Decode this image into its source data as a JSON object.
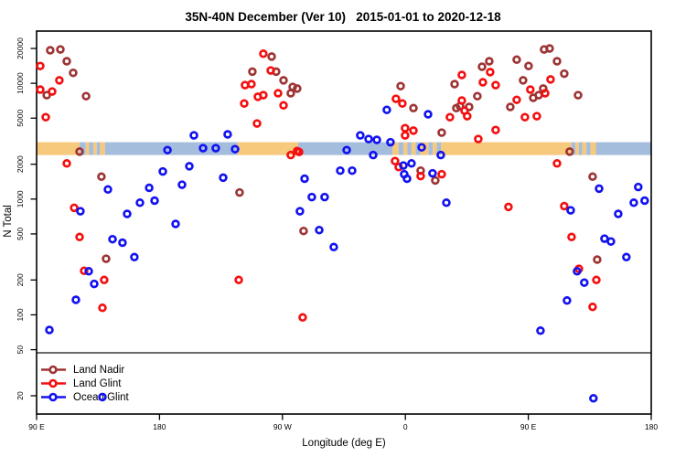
{
  "title": "35N-40N December (Ver 10)   2015-01-01 to 2020-12-18",
  "chart_data": {
    "type": "scatter",
    "title": "35N-40N December (Ver 10)   2015-01-01 to 2020-12-18",
    "xlabel": "Longitude (deg E)",
    "ylabel": "N Total",
    "x_axis": {
      "range_deg_east": [
        90,
        540
      ],
      "tick_values": [
        90,
        180,
        270,
        360,
        450,
        540
      ],
      "tick_labels": [
        "90 E",
        "180",
        "90 W",
        "0",
        "90 E",
        "180"
      ],
      "grid": false
    },
    "y_axis": {
      "scale": "log",
      "range": [
        20,
        20000
      ],
      "tick_values": [
        20,
        50,
        100,
        200,
        500,
        1000,
        2000,
        5000,
        10000,
        20000
      ],
      "tick_labels": [
        "20",
        "50",
        "100",
        "200",
        "500",
        "1000",
        "2000",
        "5000",
        "10000",
        "20000"
      ],
      "grid": false
    },
    "map_band": {
      "description": "35N-40N latitude strip map: land vs ocean along longitude",
      "land_color": "#f7c97d",
      "ocean_color": "#a5bddd",
      "n_range": [
        2400,
        3100
      ],
      "segments": [
        {
          "type": "land",
          "from": 90,
          "to": 121.5
        },
        {
          "type": "ocean",
          "from": 121.5,
          "to": 126
        },
        {
          "type": "land",
          "from": 126,
          "to": 128.5
        },
        {
          "type": "ocean",
          "from": 128.5,
          "to": 131.5
        },
        {
          "type": "land",
          "from": 131.5,
          "to": 134
        },
        {
          "type": "ocean",
          "from": 134,
          "to": 136.5
        },
        {
          "type": "land",
          "from": 136.5,
          "to": 140
        },
        {
          "type": "ocean",
          "from": 140,
          "to": 237
        },
        {
          "type": "land",
          "from": 237,
          "to": 281.5
        },
        {
          "type": "ocean",
          "from": 281.5,
          "to": 350.5
        },
        {
          "type": "land",
          "from": 350.5,
          "to": 355
        },
        {
          "type": "ocean",
          "from": 355,
          "to": 358.5
        },
        {
          "type": "land",
          "from": 358.5,
          "to": 361.5
        },
        {
          "type": "ocean",
          "from": 361.5,
          "to": 364.5
        },
        {
          "type": "land",
          "from": 364.5,
          "to": 367.5
        },
        {
          "type": "ocean",
          "from": 367.5,
          "to": 371
        },
        {
          "type": "land",
          "from": 371,
          "to": 377
        },
        {
          "type": "ocean",
          "from": 377,
          "to": 380
        },
        {
          "type": "land",
          "from": 380,
          "to": 383
        },
        {
          "type": "ocean",
          "from": 383,
          "to": 386
        },
        {
          "type": "land",
          "from": 386,
          "to": 481.5
        },
        {
          "type": "ocean",
          "from": 481.5,
          "to": 484.5
        },
        {
          "type": "land",
          "from": 484.5,
          "to": 487
        },
        {
          "type": "ocean",
          "from": 487,
          "to": 489.5
        },
        {
          "type": "land",
          "from": 489.5,
          "to": 492.5
        },
        {
          "type": "ocean",
          "from": 492.5,
          "to": 495.5
        },
        {
          "type": "land",
          "from": 495.5,
          "to": 499.5
        },
        {
          "type": "ocean",
          "from": 499.5,
          "to": 540
        }
      ]
    },
    "legend": {
      "position": "bottom-left",
      "entries": [
        "Land Nadir",
        "Land Glint",
        "Ocean Glint"
      ]
    },
    "series": [
      {
        "name": "Land Nadir",
        "color": "#9e3434",
        "points": [
          [
            100.0,
            19300
          ],
          [
            107.4,
            19600
          ],
          [
            112.1,
            15500
          ],
          [
            116.8,
            12300
          ],
          [
            97.4,
            7900
          ],
          [
            126.2,
            7750
          ],
          [
            121.5,
            2570
          ],
          [
            137.5,
            1560
          ],
          [
            140.9,
            305
          ],
          [
            238.6,
            1140
          ],
          [
            248.0,
            12600
          ],
          [
            262.1,
            17000
          ],
          [
            265.4,
            12600
          ],
          [
            270.8,
            10600
          ],
          [
            277.5,
            9300
          ],
          [
            280.8,
            9000
          ],
          [
            276.1,
            8200
          ],
          [
            285.5,
            530
          ],
          [
            356.5,
            9450
          ],
          [
            365.9,
            6100
          ],
          [
            371.2,
            1760
          ],
          [
            381.9,
            1450
          ],
          [
            386.6,
            3750
          ],
          [
            396.0,
            9850
          ],
          [
            397.3,
            6100
          ],
          [
            400.0,
            6350
          ],
          [
            406.7,
            6250
          ],
          [
            412.7,
            7750
          ],
          [
            416.1,
            13900
          ],
          [
            421.4,
            15500
          ],
          [
            436.8,
            6250
          ],
          [
            441.5,
            16000
          ],
          [
            446.2,
            10600
          ],
          [
            450.2,
            14100
          ],
          [
            453.6,
            7500
          ],
          [
            457.6,
            7900
          ],
          [
            460.9,
            9000
          ],
          [
            461.6,
            19600
          ],
          [
            465.6,
            20000
          ],
          [
            471.0,
            15500
          ],
          [
            476.3,
            12100
          ],
          [
            480.3,
            2570
          ],
          [
            486.4,
            7900
          ],
          [
            497.1,
            1560
          ],
          [
            500.4,
            300
          ]
        ]
      },
      {
        "name": "Land Glint",
        "color": "#f50f0f",
        "points": [
          [
            92.7,
            14100
          ],
          [
            106.7,
            10600
          ],
          [
            92.7,
            8830
          ],
          [
            101.4,
            8500
          ],
          [
            96.7,
            5100
          ],
          [
            112.1,
            2030
          ],
          [
            117.5,
            840
          ],
          [
            121.5,
            470
          ],
          [
            124.8,
            240
          ],
          [
            139.5,
            200
          ],
          [
            138.2,
            115
          ],
          [
            242.0,
            6700
          ],
          [
            242.6,
            9650
          ],
          [
            247.3,
            9850
          ],
          [
            251.4,
            4500
          ],
          [
            252.0,
            7640
          ],
          [
            256.0,
            7900
          ],
          [
            256.0,
            18000
          ],
          [
            261.4,
            12900
          ],
          [
            266.8,
            8200
          ],
          [
            270.8,
            6450
          ],
          [
            276.1,
            2400
          ],
          [
            280.8,
            2600
          ],
          [
            282.2,
            2550
          ],
          [
            238.0,
            200
          ],
          [
            284.8,
            95
          ],
          [
            353.1,
            7350
          ],
          [
            357.8,
            6700
          ],
          [
            352.4,
            2130
          ],
          [
            355.1,
            1890
          ],
          [
            359.8,
            4100
          ],
          [
            365.9,
            3900
          ],
          [
            359.8,
            3550
          ],
          [
            371.2,
            1580
          ],
          [
            386.6,
            1640
          ],
          [
            392.6,
            5100
          ],
          [
            401.3,
            11800
          ],
          [
            401.3,
            7100
          ],
          [
            403.3,
            5800
          ],
          [
            405.3,
            5200
          ],
          [
            413.4,
            3300
          ],
          [
            416.7,
            10200
          ],
          [
            422.1,
            12500
          ],
          [
            426.1,
            9650
          ],
          [
            426.1,
            3950
          ],
          [
            435.5,
            855
          ],
          [
            441.5,
            7200
          ],
          [
            447.5,
            5100
          ],
          [
            451.5,
            8830
          ],
          [
            456.2,
            5200
          ],
          [
            462.3,
            8200
          ],
          [
            466.3,
            10800
          ],
          [
            471.0,
            2030
          ],
          [
            476.3,
            870
          ],
          [
            481.7,
            470
          ],
          [
            487.0,
            250
          ],
          [
            497.1,
            117
          ],
          [
            499.8,
            200
          ]
        ]
      },
      {
        "name": "Ocean Glint",
        "color": "#1212f0",
        "points": [
          [
            99.4,
            74
          ],
          [
            118.8,
            135
          ],
          [
            122.1,
            785
          ],
          [
            128.2,
            238
          ],
          [
            132.2,
            185
          ],
          [
            138.2,
            19.5
          ],
          [
            142.2,
            1210
          ],
          [
            145.6,
            450
          ],
          [
            152.9,
            420
          ],
          [
            156.3,
            745
          ],
          [
            161.6,
            315
          ],
          [
            165.7,
            930
          ],
          [
            172.4,
            1250
          ],
          [
            176.4,
            970
          ],
          [
            182.4,
            1730
          ],
          [
            185.8,
            2650
          ],
          [
            191.8,
            610
          ],
          [
            196.5,
            1330
          ],
          [
            201.8,
            1920
          ],
          [
            205.2,
            3550
          ],
          [
            211.9,
            2750
          ],
          [
            221.2,
            2750
          ],
          [
            229.9,
            3620
          ],
          [
            235.3,
            2700
          ],
          [
            226.6,
            1530
          ],
          [
            282.8,
            785
          ],
          [
            286.2,
            1500
          ],
          [
            291.5,
            1040
          ],
          [
            300.9,
            1040
          ],
          [
            296.9,
            540
          ],
          [
            307.6,
            385
          ],
          [
            312.3,
            1760
          ],
          [
            317.0,
            2650
          ],
          [
            321.0,
            1760
          ],
          [
            327.0,
            3550
          ],
          [
            333.1,
            3300
          ],
          [
            336.4,
            2400
          ],
          [
            339.1,
            3250
          ],
          [
            346.4,
            5900
          ],
          [
            349.1,
            3100
          ],
          [
            358.5,
            1950
          ],
          [
            359.1,
            1640
          ],
          [
            361.2,
            1500
          ],
          [
            364.5,
            2030
          ],
          [
            371.9,
            2800
          ],
          [
            376.6,
            5400
          ],
          [
            379.9,
            1670
          ],
          [
            385.9,
            2400
          ],
          [
            390.0,
            930
          ],
          [
            458.9,
            73
          ],
          [
            478.3,
            133
          ],
          [
            481.0,
            800
          ],
          [
            485.7,
            238
          ],
          [
            491.0,
            190
          ],
          [
            497.7,
            19
          ],
          [
            501.8,
            1230
          ],
          [
            505.8,
            455
          ],
          [
            510.5,
            430
          ],
          [
            515.8,
            745
          ],
          [
            521.8,
            315
          ],
          [
            527.2,
            930
          ],
          [
            530.5,
            1270
          ],
          [
            535.2,
            970
          ]
        ]
      }
    ]
  }
}
